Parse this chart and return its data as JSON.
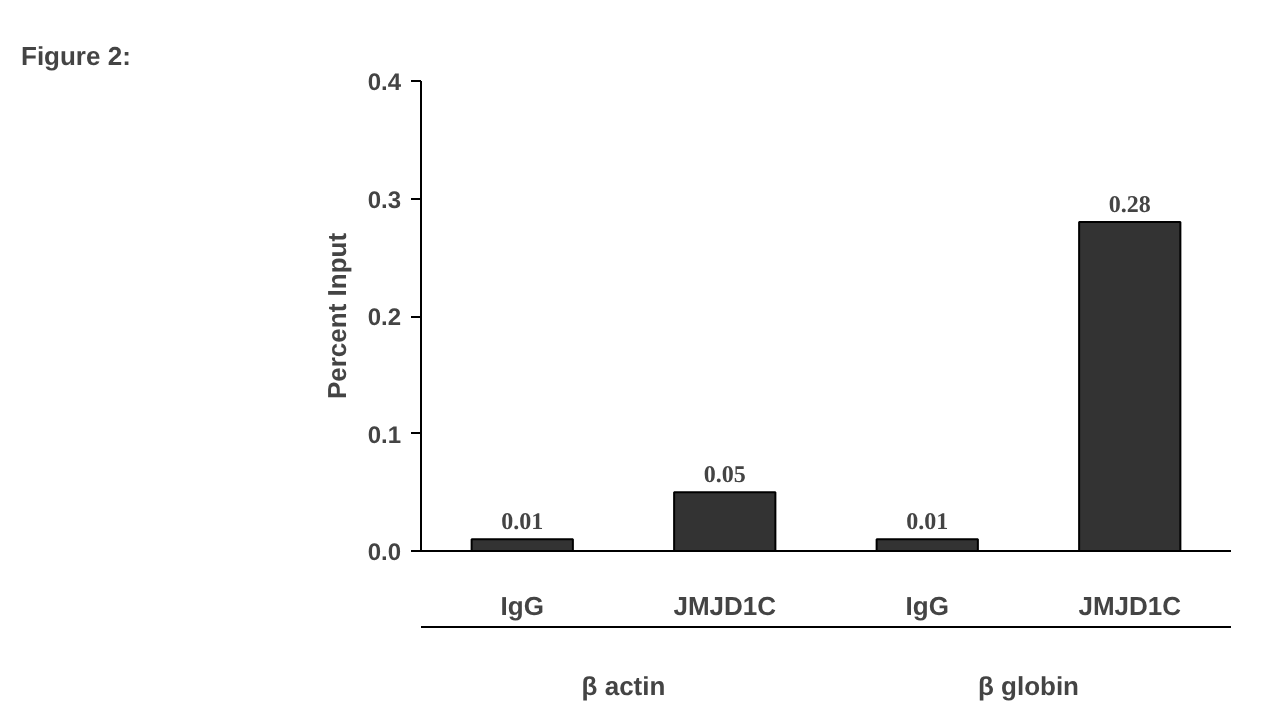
{
  "chart_data": {
    "type": "bar",
    "title": "Figure 2:",
    "ylabel": "Percent Input",
    "categories": [
      "IgG",
      "JMJD1C",
      "IgG",
      "JMJD1C"
    ],
    "values": [
      0.01,
      0.05,
      0.01,
      0.28
    ],
    "color": "#333333",
    "ylim": [
      0,
      0.4
    ],
    "yticks": [
      {
        "value": 0,
        "label": "0.0"
      },
      {
        "value": 0.1,
        "label": "0.1"
      },
      {
        "value": 0.2,
        "label": "0.2"
      },
      {
        "value": 0.3,
        "label": "0.3"
      },
      {
        "value": 0.4,
        "label": "0.4"
      }
    ],
    "data_labels": true,
    "grid": false,
    "annotations": [
      "β actin",
      "β globin"
    ]
  }
}
